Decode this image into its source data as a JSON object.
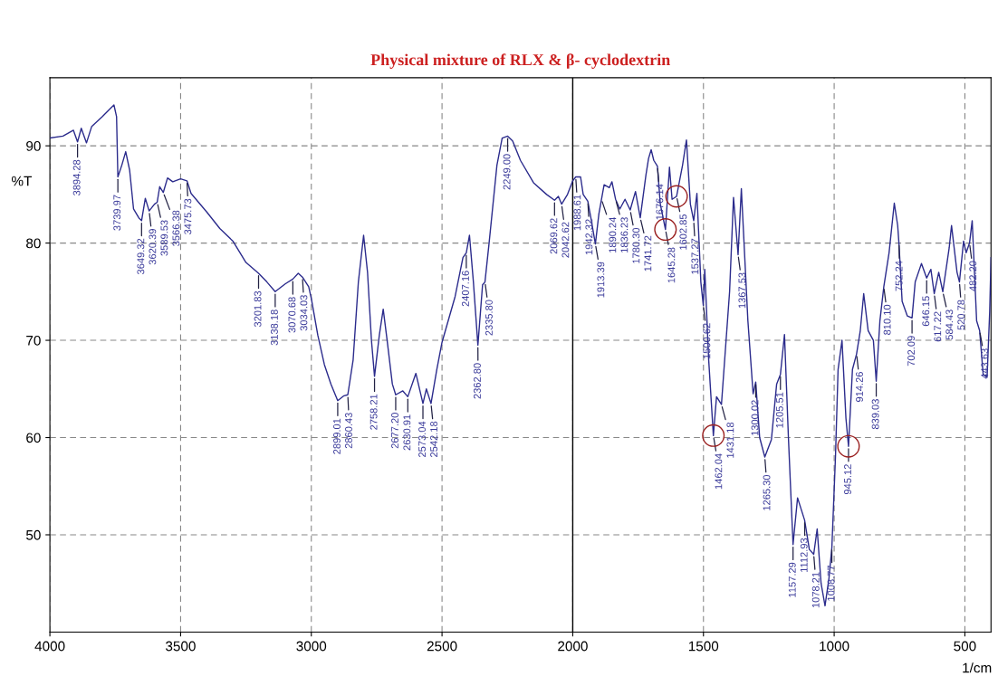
{
  "chart_data": {
    "type": "line",
    "title": "Physical mixture of RLX & β- cyclodextrin",
    "xlabel": "1/cm",
    "ylabel": "%T",
    "xlim": [
      4000,
      400
    ],
    "xticks": [
      4000,
      3500,
      3000,
      2500,
      2000,
      1500,
      1000,
      500
    ],
    "ylim": [
      40,
      97
    ],
    "yticks": [
      50,
      60,
      70,
      80,
      90
    ],
    "grid": true,
    "legend": false,
    "marker": "none",
    "line_style": "solid",
    "ref_lines": [
      {
        "axis": "x",
        "value": 2000,
        "color": "#000000",
        "line_style": "solid"
      }
    ],
    "series": [
      {
        "color": "#2b2b8c",
        "x": [
          4000,
          3950,
          3910,
          3894.28,
          3880,
          3860,
          3840,
          3800,
          3770,
          3755,
          3745,
          3739.97,
          3725,
          3710,
          3695,
          3680,
          3660,
          3649.32,
          3635,
          3620.39,
          3600,
          3589.53,
          3580,
          3566.38,
          3550,
          3530,
          3500,
          3475.73,
          3460,
          3400,
          3350,
          3300,
          3250,
          3201.83,
          3170,
          3138.18,
          3100,
          3070.68,
          3050,
          3034.03,
          3010,
          3000,
          2975,
          2950,
          2925,
          2899.01,
          2875,
          2860.43,
          2840,
          2820,
          2800,
          2785,
          2770,
          2758.21,
          2740,
          2725,
          2710,
          2690,
          2677.2,
          2650,
          2630.91,
          2600,
          2573.04,
          2560,
          2542.18,
          2520,
          2500,
          2450,
          2420,
          2407.16,
          2395,
          2380,
          2362.8,
          2345,
          2335.8,
          2320,
          2290,
          2270,
          2249.0,
          2230,
          2200,
          2150,
          2100,
          2069.62,
          2055,
          2042.62,
          2020,
          2000,
          1988.61,
          1970,
          1960,
          1942.32,
          1930,
          1913.39,
          1900,
          1880,
          1860,
          1850,
          1836.23,
          1820,
          1800,
          1780.3,
          1760,
          1741.72,
          1720,
          1710,
          1700,
          1690,
          1676.14,
          1665,
          1645.28,
          1630,
          1620,
          1602.85,
          1580,
          1565,
          1550,
          1537.27,
          1525,
          1510,
          1500.62,
          1495,
          1480,
          1462.04,
          1450,
          1431.18,
          1400,
          1385,
          1367.53,
          1355,
          1330,
          1310,
          1300.02,
          1285,
          1265.3,
          1240,
          1220,
          1205.51,
          1190,
          1175,
          1157.29,
          1140,
          1112.93,
          1095,
          1078.21,
          1065,
          1050,
          1035,
          1020,
          1008.77,
          995,
          985,
          970,
          955,
          945.12,
          930,
          914.26,
          900,
          887,
          870,
          850,
          839.03,
          825,
          810.1,
          790,
          770,
          757,
          752.24,
          740,
          720,
          702.09,
          690,
          666,
          646.15,
          630,
          617.22,
          600,
          584.43,
          560,
          551,
          530,
          520.78,
          505,
          495,
          482.2,
          472,
          455,
          443.63,
          430,
          415,
          405,
          400
        ],
        "values": [
          90.8,
          91.0,
          91.6,
          90.4,
          91.8,
          90.3,
          92.0,
          93.0,
          93.8,
          94.2,
          93.0,
          86.8,
          88.0,
          89.4,
          87.5,
          83.5,
          82.6,
          82.3,
          84.6,
          83.3,
          84.0,
          84.2,
          85.8,
          85.2,
          86.7,
          86.3,
          86.6,
          86.4,
          85.1,
          83.2,
          81.5,
          80.2,
          78.0,
          76.9,
          76.0,
          75.0,
          75.8,
          76.3,
          76.9,
          76.5,
          75.5,
          74.3,
          70.5,
          67.5,
          65.5,
          63.8,
          64.3,
          64.4,
          68.0,
          76.0,
          80.8,
          77.0,
          70.0,
          66.3,
          70.5,
          73.2,
          70.0,
          65.5,
          64.4,
          64.8,
          64.2,
          66.6,
          63.5,
          65.0,
          63.5,
          67.0,
          69.8,
          74.5,
          78.5,
          79.0,
          80.8,
          76.0,
          69.5,
          75.7,
          76.0,
          80.0,
          88.0,
          90.8,
          91.0,
          90.5,
          88.5,
          86.2,
          85.0,
          84.4,
          84.8,
          84.0,
          85.0,
          86.4,
          86.8,
          86.8,
          85.0,
          84.3,
          82.5,
          79.9,
          83.0,
          86.0,
          85.7,
          86.3,
          84.5,
          83.5,
          84.5,
          83.4,
          85.3,
          82.6,
          87.0,
          88.7,
          89.6,
          88.5,
          87.9,
          84.0,
          81.4,
          87.8,
          84.5,
          84.8,
          88.0,
          90.6,
          84.0,
          82.3,
          85.1,
          76.0,
          73.6,
          77.3,
          68.0,
          60.2,
          64.2,
          63.4,
          75.0,
          84.7,
          78.8,
          85.6,
          72.0,
          64.5,
          65.7,
          60.0,
          58.0,
          59.8,
          65.5,
          66.5,
          70.6,
          60.0,
          49.0,
          53.8,
          51.5,
          48.5,
          48.0,
          50.6,
          45.0,
          42.7,
          45.5,
          48.7,
          58.0,
          67.0,
          70.0,
          62.0,
          59.1,
          67.0,
          68.6,
          71.0,
          74.8,
          71.0,
          70.0,
          65.8,
          72.0,
          75.5,
          79.0,
          84.1,
          81.8,
          80.0,
          74.0,
          72.5,
          72.3,
          76.0,
          77.9,
          76.4,
          77.3,
          74.8,
          77.0,
          75.0,
          79.5,
          81.8,
          77.0,
          76.0,
          80.2,
          79.0,
          80.0,
          82.3,
          72.0,
          71.0,
          66.5,
          66.2,
          73.0,
          78.5
        ]
      }
    ],
    "annotations": [
      {
        "text": "3894.28",
        "x": 3894.28,
        "y": 90.4
      },
      {
        "text": "3739.97",
        "x": 3739.97,
        "y": 86.8
      },
      {
        "text": "3649.32",
        "x": 3649.32,
        "y": 82.3
      },
      {
        "text": "3620.39",
        "x": 3620.39,
        "y": 83.3
      },
      {
        "text": "3589.53",
        "x": 3589.53,
        "y": 84.2
      },
      {
        "text": "3566.38",
        "x": 3566.38,
        "y": 85.2
      },
      {
        "text": "3475.73",
        "x": 3475.73,
        "y": 86.4
      },
      {
        "text": "3201.83",
        "x": 3201.83,
        "y": 76.9
      },
      {
        "text": "3138.18",
        "x": 3138.18,
        "y": 75.0
      },
      {
        "text": "3070.68",
        "x": 3070.68,
        "y": 76.3
      },
      {
        "text": "3034.03",
        "x": 3034.03,
        "y": 76.5
      },
      {
        "text": "2899.01",
        "x": 2899.01,
        "y": 63.8
      },
      {
        "text": "2860.43",
        "x": 2860.43,
        "y": 64.4
      },
      {
        "text": "2758.21",
        "x": 2758.21,
        "y": 66.3
      },
      {
        "text": "2677.20",
        "x": 2677.2,
        "y": 64.4
      },
      {
        "text": "2630.91",
        "x": 2630.91,
        "y": 64.2
      },
      {
        "text": "2573.04",
        "x": 2573.04,
        "y": 63.5
      },
      {
        "text": "2542.18",
        "x": 2542.18,
        "y": 63.5
      },
      {
        "text": "2407.16",
        "x": 2407.16,
        "y": 79.0
      },
      {
        "text": "2362.80",
        "x": 2362.8,
        "y": 69.5
      },
      {
        "text": "2335.80",
        "x": 2335.8,
        "y": 76.0
      },
      {
        "text": "2249.00",
        "x": 2249.0,
        "y": 91.0
      },
      {
        "text": "2069.62",
        "x": 2069.62,
        "y": 84.4
      },
      {
        "text": "2042.62",
        "x": 2042.62,
        "y": 84.0
      },
      {
        "text": "1988.61",
        "x": 1988.61,
        "y": 86.8
      },
      {
        "text": "1942.32",
        "x": 1942.32,
        "y": 84.3
      },
      {
        "text": "1913.39",
        "x": 1913.39,
        "y": 79.9
      },
      {
        "text": "1890.24",
        "x": 1890.24,
        "y": 84.5
      },
      {
        "text": "1836.23",
        "x": 1836.23,
        "y": 84.5
      },
      {
        "text": "1780.30",
        "x": 1780.3,
        "y": 83.4
      },
      {
        "text": "1741.72",
        "x": 1741.72,
        "y": 82.6
      },
      {
        "text": "1676.14",
        "x": 1676.14,
        "y": 87.9
      },
      {
        "text": "1645.28",
        "x": 1645.28,
        "y": 81.4
      },
      {
        "text": "1602.85",
        "x": 1602.85,
        "y": 84.8
      },
      {
        "text": "1537.27",
        "x": 1537.27,
        "y": 82.3
      },
      {
        "text": "1500.62",
        "x": 1500.62,
        "y": 73.6
      },
      {
        "text": "1462.04",
        "x": 1462.04,
        "y": 60.2
      },
      {
        "text": "1431.18",
        "x": 1431.18,
        "y": 63.4
      },
      {
        "text": "1367.53",
        "x": 1367.53,
        "y": 78.8
      },
      {
        "text": "1300.02",
        "x": 1300.02,
        "y": 65.7
      },
      {
        "text": "1265.30",
        "x": 1265.3,
        "y": 58.0
      },
      {
        "text": "1205.51",
        "x": 1205.51,
        "y": 66.5
      },
      {
        "text": "1157.29",
        "x": 1157.29,
        "y": 49.0
      },
      {
        "text": "1112.93",
        "x": 1112.93,
        "y": 51.5
      },
      {
        "text": "1078.21",
        "x": 1078.21,
        "y": 48.0
      },
      {
        "text": "1008.77",
        "x": 1008.77,
        "y": 48.7
      },
      {
        "text": "945.12",
        "x": 945.12,
        "y": 59.1
      },
      {
        "text": "914.26",
        "x": 914.26,
        "y": 68.6
      },
      {
        "text": "839.03",
        "x": 839.03,
        "y": 65.8
      },
      {
        "text": "810.10",
        "x": 810.1,
        "y": 75.5
      },
      {
        "text": "752.24",
        "x": 752.24,
        "y": 80.0
      },
      {
        "text": "702.09",
        "x": 702.09,
        "y": 72.3
      },
      {
        "text": "646.15",
        "x": 646.15,
        "y": 76.4
      },
      {
        "text": "617.22",
        "x": 617.22,
        "y": 74.8
      },
      {
        "text": "584.43",
        "x": 584.43,
        "y": 75.0
      },
      {
        "text": "520.78",
        "x": 520.78,
        "y": 76.0
      },
      {
        "text": "482.20",
        "x": 482.2,
        "y": 80.0
      },
      {
        "text": "443.63",
        "x": 443.63,
        "y": 71.0
      }
    ]
  }
}
